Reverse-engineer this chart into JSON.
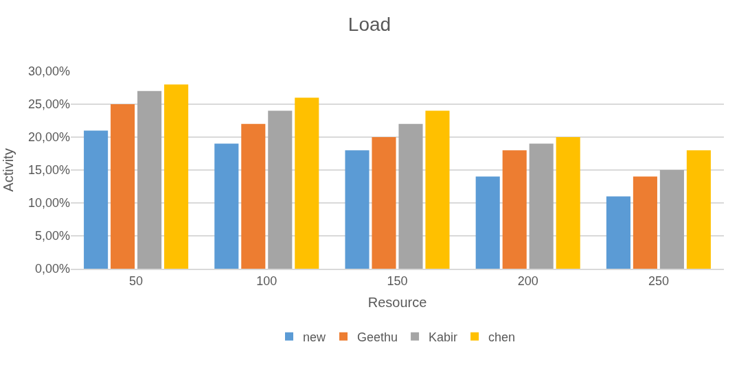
{
  "chart_data": {
    "type": "bar",
    "title": "Load",
    "xlabel": "Resource",
    "ylabel": "Activity",
    "categories": [
      "50",
      "100",
      "150",
      "200",
      "250"
    ],
    "series": [
      {
        "name": "new",
        "color": "#5b9bd5",
        "values": [
          21,
          19,
          18,
          14,
          11
        ]
      },
      {
        "name": "Geethu",
        "color": "#ed7d31",
        "values": [
          25,
          22,
          20,
          18,
          14
        ]
      },
      {
        "name": "Kabir",
        "color": "#a5a5a5",
        "values": [
          27,
          24,
          22,
          19,
          15
        ]
      },
      {
        "name": "chen",
        "color": "#ffc000",
        "values": [
          28,
          26,
          24,
          20,
          18
        ]
      }
    ],
    "ylim": [
      0,
      30
    ],
    "yticks": [
      {
        "value": 0,
        "label": "0,00%"
      },
      {
        "value": 5,
        "label": "5,00%"
      },
      {
        "value": 10,
        "label": "10,00%"
      },
      {
        "value": 15,
        "label": "15,00%"
      },
      {
        "value": 20,
        "label": "20,00%"
      },
      {
        "value": 25,
        "label": "25,00%"
      },
      {
        "value": 30,
        "label": "30,00%"
      }
    ],
    "grid": "y",
    "legend": "bottom"
  }
}
